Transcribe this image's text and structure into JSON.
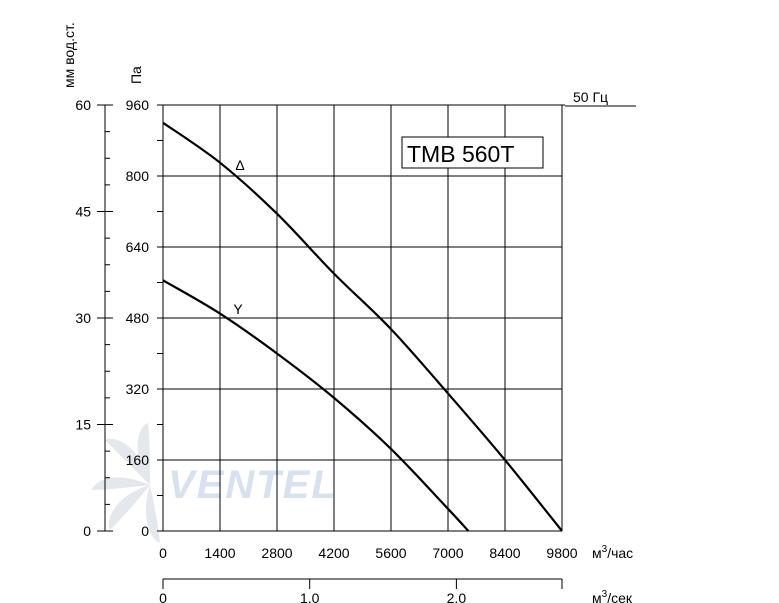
{
  "chart_data": {
    "type": "line",
    "title": "",
    "model_label": "TMB 560T",
    "frequency_label": "50 Гц",
    "x_axis": {
      "label": "м³/час",
      "ticks": [
        "0",
        "1400",
        "2800",
        "4200",
        "5600",
        "7000",
        "8400",
        "9800"
      ],
      "range": [
        0,
        9800
      ]
    },
    "x2_axis": {
      "label": "м³/сек",
      "ticks": [
        "0",
        "1.0",
        "2.0"
      ],
      "range": [
        0,
        2.72
      ]
    },
    "y_axis": {
      "label": "Па",
      "ticks": [
        "0",
        "160",
        "320",
        "480",
        "640",
        "800",
        "960"
      ],
      "range": [
        0,
        960
      ]
    },
    "y2_axis": {
      "label": "мм вод.ст.",
      "ticks": [
        "0",
        "15",
        "30",
        "45",
        "60"
      ],
      "range": [
        0,
        60
      ]
    },
    "grid": true,
    "series": [
      {
        "name": "Δ",
        "x": [
          0,
          1400,
          2800,
          4200,
          5600,
          7000,
          8400,
          9800
        ],
        "y": [
          920,
          830,
          715,
          580,
          455,
          310,
          160,
          0
        ]
      },
      {
        "name": "Y",
        "x": [
          0,
          1400,
          2800,
          4200,
          5600,
          7000,
          7500
        ],
        "y": [
          565,
          490,
          400,
          300,
          185,
          50,
          0
        ]
      }
    ],
    "watermark": "VENTEL"
  }
}
